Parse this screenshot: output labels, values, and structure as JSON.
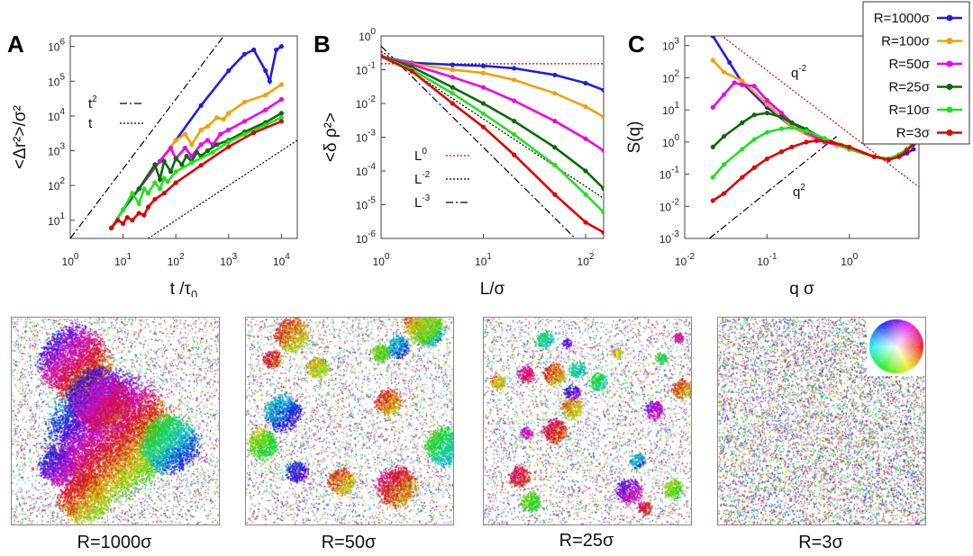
{
  "chart_data": [
    {
      "type": "line",
      "panel": "A",
      "xlabel": "t /τ",
      "xlabel_sub": "0",
      "ylabel": "<Δr²>/σ²",
      "xscale": "log",
      "yscale": "log",
      "xlim": [
        1,
        20000
      ],
      "ylim": [
        3,
        2000000
      ],
      "xticks": [
        {
          "b": "10",
          "e": "0",
          "v": 1
        },
        {
          "b": "10",
          "e": "1",
          "v": 10
        },
        {
          "b": "10",
          "e": "2",
          "v": 100
        },
        {
          "b": "10",
          "e": "3",
          "v": 1000
        },
        {
          "b": "10",
          "e": "4",
          "v": 10000
        }
      ],
      "yticks": [
        {
          "b": "10",
          "e": "1",
          "v": 10
        },
        {
          "b": "10",
          "e": "2",
          "v": 100
        },
        {
          "b": "10",
          "e": "3",
          "v": 1000
        },
        {
          "b": "10",
          "e": "4",
          "v": 10000
        },
        {
          "b": "10",
          "e": "5",
          "v": 100000
        },
        {
          "b": "10",
          "e": "6",
          "v": 1000000
        }
      ],
      "legend": [
        {
          "label": "t",
          "sup": "2",
          "style": "dashdot"
        },
        {
          "label": "t",
          "sup": "",
          "style": "dotted"
        }
      ],
      "series": [
        {
          "name": "t^2",
          "style": "dashdot",
          "color": "#000000",
          "x": [
            1,
            1400
          ],
          "y": [
            3,
            6000000
          ]
        },
        {
          "name": "t",
          "style": "dotted",
          "color": "#000000",
          "x": [
            30,
            20000
          ],
          "y": [
            3,
            2000
          ]
        },
        {
          "name": "R=1000σ",
          "color": "#1f1fdd",
          "x": [
            6,
            10,
            20,
            50,
            100,
            300,
            1000,
            2000,
            3000,
            5000,
            6000,
            8000,
            10000
          ],
          "y": [
            6,
            20,
            80,
            500,
            2000,
            20000,
            200000,
            600000,
            800000,
            200000,
            100000,
            800000,
            1000000
          ]
        },
        {
          "name": "R=100σ",
          "color": "#f5a000",
          "x": [
            6,
            10,
            20,
            50,
            100,
            150,
            200,
            300,
            400,
            600,
            800,
            1000,
            2000,
            5000,
            10000
          ],
          "y": [
            6,
            20,
            80,
            500,
            2000,
            3000,
            1500,
            4000,
            5000,
            9000,
            8000,
            12000,
            25000,
            40000,
            80000
          ]
        },
        {
          "name": "R=50σ",
          "color": "#ee00ee",
          "x": [
            6,
            10,
            20,
            50,
            80,
            100,
            150,
            200,
            300,
            400,
            500,
            700,
            1000,
            2000,
            5000,
            10000
          ],
          "y": [
            6,
            20,
            80,
            500,
            1200,
            600,
            1200,
            700,
            1500,
            2000,
            1500,
            3000,
            4000,
            7000,
            15000,
            30000
          ]
        },
        {
          "name": "R=25σ",
          "color": "#0a6a0a",
          "x": [
            6,
            10,
            20,
            40,
            50,
            60,
            80,
            100,
            130,
            160,
            200,
            250,
            300,
            400,
            600,
            1000,
            2000,
            5000,
            10000
          ],
          "y": [
            6,
            20,
            80,
            400,
            150,
            500,
            250,
            600,
            400,
            700,
            500,
            900,
            700,
            1000,
            1500,
            2000,
            3500,
            6500,
            12000
          ]
        },
        {
          "name": "R=10σ",
          "color": "#22e022",
          "x": [
            6,
            10,
            15,
            20,
            25,
            30,
            40,
            50,
            60,
            70,
            100,
            200,
            500,
            1000,
            2000,
            5000,
            10000
          ],
          "y": [
            6,
            20,
            60,
            30,
            80,
            60,
            120,
            80,
            160,
            130,
            250,
            450,
            900,
            1800,
            3000,
            5500,
            9000
          ]
        },
        {
          "name": "R=3σ",
          "color": "#e00000",
          "x": [
            6,
            8,
            10,
            12,
            15,
            20,
            25,
            30,
            40,
            60,
            100,
            300,
            1000,
            3000,
            10000
          ],
          "y": [
            6,
            10,
            8,
            12,
            10,
            16,
            14,
            24,
            40,
            60,
            120,
            380,
            1300,
            3300,
            7000
          ]
        }
      ]
    },
    {
      "type": "line",
      "panel": "B",
      "xlabel": "L/σ",
      "ylabel": "<δ ρ²>",
      "xscale": "log",
      "yscale": "log",
      "xlim": [
        1,
        150
      ],
      "ylim": [
        1e-06,
        1
      ],
      "xticks": [
        {
          "b": "10",
          "e": "0",
          "v": 1
        },
        {
          "b": "10",
          "e": "1",
          "v": 10
        },
        {
          "b": "10",
          "e": "2",
          "v": 100
        }
      ],
      "yticks": [
        {
          "b": "10",
          "e": "0",
          "v": 1
        },
        {
          "b": "10",
          "e": "-1",
          "v": 0.1
        },
        {
          "b": "10",
          "e": "-2",
          "v": 0.01
        },
        {
          "b": "10",
          "e": "-3",
          "v": 0.001
        },
        {
          "b": "10",
          "e": "-4",
          "v": 0.0001
        },
        {
          "b": "10",
          "e": "-5",
          "v": 1e-05
        },
        {
          "b": "10",
          "e": "-6",
          "v": 1e-06
        }
      ],
      "legend": [
        {
          "label": "L",
          "sup": "0",
          "style": "dotted-red"
        },
        {
          "label": "L",
          "sup": "-2",
          "style": "dotted"
        },
        {
          "label": "L",
          "sup": "-3",
          "style": "dashdot"
        }
      ],
      "series": [
        {
          "name": "L^0",
          "style": "dotted",
          "color": "#e00000",
          "x": [
            1,
            150
          ],
          "y": [
            0.15,
            0.15
          ]
        },
        {
          "name": "L^-2",
          "style": "dotted",
          "color": "#000000",
          "x": [
            1,
            150
          ],
          "y": [
            0.35,
            1.55e-05
          ]
        },
        {
          "name": "L^-3",
          "style": "dashdot",
          "color": "#000000",
          "x": [
            1,
            100
          ],
          "y": [
            0.5,
            5e-07
          ]
        },
        {
          "name": "R=1000σ",
          "color": "#1f1fdd",
          "x": [
            1,
            2,
            5,
            10,
            20,
            50,
            100,
            150
          ],
          "y": [
            0.25,
            0.16,
            0.14,
            0.13,
            0.11,
            0.07,
            0.04,
            0.025
          ]
        },
        {
          "name": "R=100σ",
          "color": "#f5a000",
          "x": [
            1,
            2,
            5,
            10,
            20,
            50,
            100,
            150
          ],
          "y": [
            0.25,
            0.15,
            0.1,
            0.08,
            0.05,
            0.02,
            0.008,
            0.004
          ]
        },
        {
          "name": "R=50σ",
          "color": "#ee00ee",
          "x": [
            1,
            2,
            5,
            10,
            20,
            50,
            100,
            150
          ],
          "y": [
            0.25,
            0.14,
            0.06,
            0.03,
            0.012,
            0.003,
            0.0009,
            0.0004
          ]
        },
        {
          "name": "R=25σ",
          "color": "#0a6a0a",
          "x": [
            1,
            2,
            5,
            10,
            20,
            50,
            100,
            150
          ],
          "y": [
            0.25,
            0.12,
            0.03,
            0.01,
            0.003,
            0.0005,
            0.0001,
            3e-05
          ]
        },
        {
          "name": "R=10σ",
          "color": "#22e022",
          "x": [
            1,
            2,
            5,
            10,
            20,
            50,
            100,
            150
          ],
          "y": [
            0.25,
            0.1,
            0.02,
            0.005,
            0.0012,
            0.00015,
            2e-05,
            6e-06
          ]
        },
        {
          "name": "R=3σ",
          "color": "#e00000",
          "x": [
            1,
            2,
            5,
            10,
            20,
            50,
            100,
            150
          ],
          "y": [
            0.25,
            0.09,
            0.01,
            0.002,
            0.0003,
            2e-05,
            3e-06,
            1.5e-06
          ]
        }
      ]
    },
    {
      "type": "line",
      "panel": "C",
      "xlabel": "q σ",
      "ylabel": "S(q)",
      "xscale": "log",
      "yscale": "log",
      "xlim": [
        0.01,
        7
      ],
      "ylim": [
        0.001,
        2000
      ],
      "xticks": [
        {
          "b": "10",
          "e": "-2",
          "v": 0.01
        },
        {
          "b": "10",
          "e": "-1",
          "v": 0.1
        },
        {
          "b": "10",
          "e": "0",
          "v": 1
        }
      ],
      "yticks": [
        {
          "b": "10",
          "e": "3",
          "v": 1000
        },
        {
          "b": "10",
          "e": "2",
          "v": 100
        },
        {
          "b": "10",
          "e": "1",
          "v": 10
        },
        {
          "b": "10",
          "e": "0",
          "v": 1
        },
        {
          "b": "10",
          "e": "-1",
          "v": 0.1
        },
        {
          "b": "10",
          "e": "-2",
          "v": 0.01
        },
        {
          "b": "10",
          "e": "-3",
          "v": 0.001
        }
      ],
      "annotations": [
        {
          "text": "q",
          "sup": "-2"
        },
        {
          "text": "q",
          "sup": "2"
        }
      ],
      "series": [
        {
          "name": "q^-2",
          "style": "dotted",
          "color": "#e00000",
          "x": [
            0.02,
            7
          ],
          "y": [
            4000,
            0.04
          ]
        },
        {
          "name": "q^2",
          "style": "dashdot",
          "color": "#000000",
          "x": [
            0.02,
            0.7
          ],
          "y": [
            0.001,
            1.5
          ]
        },
        {
          "name": "R=1000σ",
          "color": "#1f1fdd",
          "x": [
            0.022,
            0.035,
            0.05,
            0.1,
            0.2,
            0.4,
            0.7,
            1,
            2,
            3,
            4,
            5,
            6
          ],
          "y": [
            2000,
            300,
            70,
            12,
            3,
            1.2,
            0.8,
            0.6,
            0.35,
            0.3,
            0.35,
            0.45,
            0.6
          ]
        },
        {
          "name": "R=100σ",
          "color": "#f5a000",
          "x": [
            0.022,
            0.03,
            0.05,
            0.1,
            0.2,
            0.4,
            0.7,
            1,
            2,
            3,
            4,
            5,
            6
          ],
          "y": [
            350,
            150,
            80,
            15,
            3,
            1.2,
            0.8,
            0.6,
            0.35,
            0.3,
            0.4,
            0.6,
            0.9
          ]
        },
        {
          "name": "R=50σ",
          "color": "#ee00ee",
          "x": [
            0.022,
            0.03,
            0.04,
            0.05,
            0.07,
            0.1,
            0.15,
            0.2,
            0.3,
            0.5,
            0.8,
            1,
            2,
            3,
            4,
            5,
            6
          ],
          "y": [
            12,
            30,
            70,
            60,
            55,
            20,
            8,
            4,
            2,
            1,
            0.8,
            0.6,
            0.35,
            0.3,
            0.4,
            0.6,
            0.9
          ]
        },
        {
          "name": "R=25σ",
          "color": "#0a6a0a",
          "x": [
            0.022,
            0.03,
            0.05,
            0.07,
            0.1,
            0.15,
            0.2,
            0.3,
            0.5,
            0.8,
            1,
            2,
            3,
            4,
            5,
            6
          ],
          "y": [
            0.7,
            1.5,
            4,
            7,
            8,
            6,
            4,
            2.5,
            1.2,
            0.8,
            0.6,
            0.35,
            0.3,
            0.4,
            0.6,
            0.9
          ]
        },
        {
          "name": "R=10σ",
          "color": "#22e022",
          "x": [
            0.022,
            0.03,
            0.05,
            0.07,
            0.1,
            0.15,
            0.2,
            0.3,
            0.5,
            0.8,
            1,
            2,
            3,
            4,
            5,
            6
          ],
          "y": [
            0.08,
            0.2,
            0.6,
            1.2,
            2,
            2.6,
            2.8,
            2.2,
            1.3,
            0.8,
            0.6,
            0.35,
            0.3,
            0.4,
            0.6,
            0.9
          ]
        },
        {
          "name": "R=3σ",
          "color": "#e00000",
          "x": [
            0.022,
            0.03,
            0.05,
            0.07,
            0.1,
            0.15,
            0.2,
            0.3,
            0.4,
            0.6,
            1,
            2,
            3,
            4,
            5,
            6
          ],
          "y": [
            0.015,
            0.025,
            0.08,
            0.16,
            0.3,
            0.5,
            0.7,
            1,
            1.1,
            1,
            0.7,
            0.35,
            0.28,
            0.35,
            0.55,
            0.85
          ]
        }
      ],
      "legend_box": [
        {
          "label": "R=1000σ",
          "color": "#1f1fdd"
        },
        {
          "label": "R=100σ",
          "color": "#f5a000"
        },
        {
          "label": "R=50σ",
          "color": "#ee00ee"
        },
        {
          "label": "R=25σ",
          "color": "#0a6a0a"
        },
        {
          "label": "R=10σ",
          "color": "#22e022"
        },
        {
          "label": "R=3σ",
          "color": "#e00000"
        }
      ]
    }
  ],
  "panel_labels": [
    "A",
    "B",
    "C"
  ],
  "snapshots": [
    {
      "caption": "R=1000σ",
      "pattern": "big-cluster"
    },
    {
      "caption": "R=50σ",
      "pattern": "medium-clusters"
    },
    {
      "caption": "R=25σ",
      "pattern": "small-clusters"
    },
    {
      "caption": "R=3σ",
      "pattern": "uniform",
      "color_wheel": true
    }
  ]
}
